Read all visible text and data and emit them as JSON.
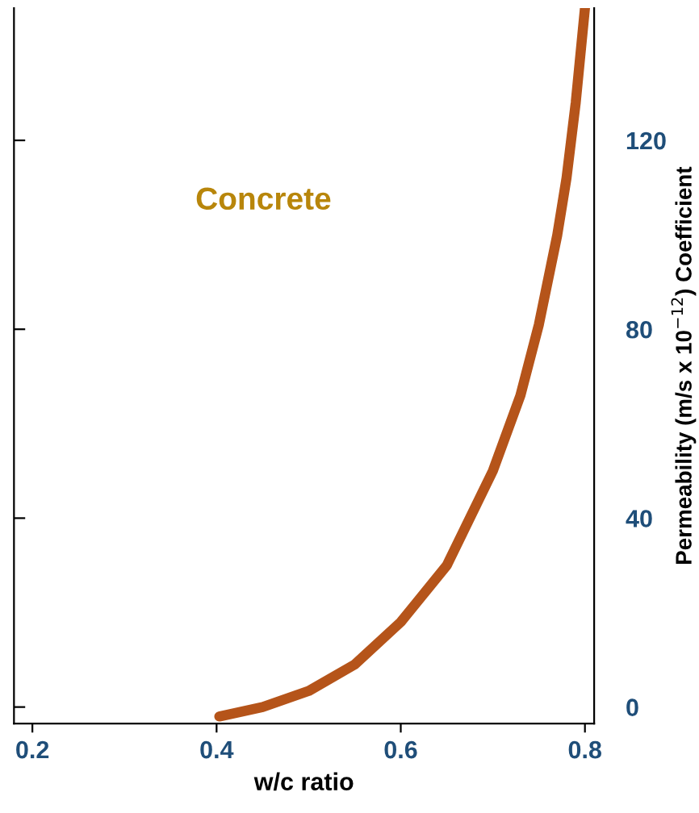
{
  "chart_data": {
    "type": "line",
    "xlabel": "w/c ratio",
    "ylabel": "Permeability (m/s x 10$^{−12}$) Coefficient",
    "annotations": [
      "Concrete"
    ],
    "series": [
      {
        "color": "#b5541a",
        "x": [
          0.403,
          0.45,
          0.5,
          0.55,
          0.6,
          0.65,
          0.7,
          0.73,
          0.75,
          0.77,
          0.78,
          0.79,
          0.8
        ],
        "values": [
          -2,
          0,
          3.4,
          9,
          18,
          30,
          50,
          66,
          81,
          100,
          112,
          128,
          148
        ]
      }
    ],
    "xlim": [
      0.18,
      0.81
    ],
    "xticks": [
      0.2,
      0.4,
      0.6,
      0.8
    ],
    "ylim": [
      -3.5,
      148
    ],
    "yticks": [
      0,
      40,
      80,
      120
    ],
    "grid": false,
    "legend": false,
    "marker": "none",
    "line_style": "solid"
  }
}
